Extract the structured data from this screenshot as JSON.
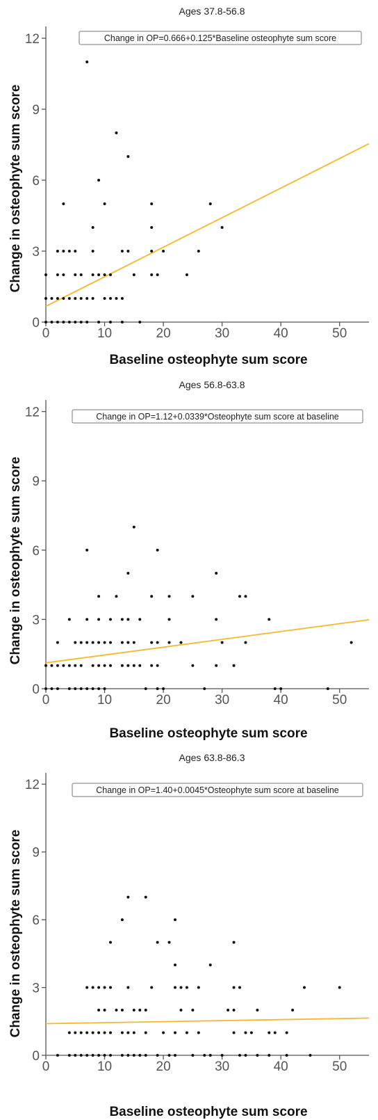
{
  "chart_data": [
    {
      "type": "scatter",
      "title": "Ages 37.8-56.8",
      "xlabel": "Baseline osteophyte sum score",
      "ylabel": "Change in osteophyte sum score",
      "xlim": [
        0,
        55
      ],
      "ylim": [
        0,
        12.5
      ],
      "xticks": [
        0,
        10,
        20,
        30,
        40,
        50
      ],
      "yticks": [
        0,
        3,
        6,
        9,
        12
      ],
      "annotation": "Change in OP=0.666+0.125*Baseline osteophyte sum score",
      "fit": {
        "intercept": 0.666,
        "slope": 0.125,
        "color": "#f5b82e"
      },
      "points": [
        [
          0,
          0
        ],
        [
          1,
          0
        ],
        [
          2,
          0
        ],
        [
          3,
          0
        ],
        [
          4,
          0
        ],
        [
          5,
          0
        ],
        [
          6,
          0
        ],
        [
          7,
          0
        ],
        [
          9,
          0
        ],
        [
          11,
          0
        ],
        [
          13,
          0
        ],
        [
          16,
          0
        ],
        [
          0,
          1
        ],
        [
          1,
          1
        ],
        [
          2,
          1
        ],
        [
          3,
          1
        ],
        [
          4,
          1
        ],
        [
          5,
          1
        ],
        [
          6,
          1
        ],
        [
          7,
          1
        ],
        [
          8,
          1
        ],
        [
          10,
          1
        ],
        [
          11,
          1
        ],
        [
          12,
          1
        ],
        [
          13,
          1
        ],
        [
          0,
          2
        ],
        [
          2,
          2
        ],
        [
          3,
          2
        ],
        [
          5,
          2
        ],
        [
          6,
          2
        ],
        [
          8,
          2
        ],
        [
          9,
          2
        ],
        [
          10,
          2
        ],
        [
          11,
          2
        ],
        [
          15,
          2
        ],
        [
          18,
          2
        ],
        [
          19,
          2
        ],
        [
          24,
          2
        ],
        [
          2,
          3
        ],
        [
          3,
          3
        ],
        [
          4,
          3
        ],
        [
          5,
          3
        ],
        [
          8,
          3
        ],
        [
          13,
          3
        ],
        [
          14,
          3
        ],
        [
          18,
          3
        ],
        [
          20,
          3
        ],
        [
          26,
          3
        ],
        [
          8,
          4
        ],
        [
          18,
          4
        ],
        [
          30,
          4
        ],
        [
          3,
          5
        ],
        [
          10,
          5
        ],
        [
          18,
          5
        ],
        [
          28,
          5
        ],
        [
          9,
          6
        ],
        [
          14,
          7
        ],
        [
          12,
          8
        ],
        [
          7,
          11
        ]
      ]
    },
    {
      "type": "scatter",
      "title": "Ages 56.8-63.8",
      "xlabel": "Baseline osteophyte sum score",
      "ylabel": "Change in osteophyte sum score",
      "xlim": [
        0,
        55
      ],
      "ylim": [
        0,
        12.5
      ],
      "xticks": [
        0,
        10,
        20,
        30,
        40,
        50
      ],
      "yticks": [
        0,
        3,
        6,
        9,
        12
      ],
      "annotation": "Change in OP=1.12+0.0339*Osteophyte sum score at baseline",
      "fit": {
        "intercept": 1.12,
        "slope": 0.0339,
        "color": "#f5b82e"
      },
      "points": [
        [
          0,
          0
        ],
        [
          1,
          0
        ],
        [
          2,
          0
        ],
        [
          4,
          0
        ],
        [
          5,
          0
        ],
        [
          6,
          0
        ],
        [
          7,
          0
        ],
        [
          8,
          0
        ],
        [
          9,
          0
        ],
        [
          10,
          0
        ],
        [
          17,
          0
        ],
        [
          19,
          0
        ],
        [
          20,
          0
        ],
        [
          27,
          0
        ],
        [
          39,
          0
        ],
        [
          40,
          0
        ],
        [
          48,
          0
        ],
        [
          0,
          1
        ],
        [
          1,
          1
        ],
        [
          2,
          1
        ],
        [
          3,
          1
        ],
        [
          4,
          1
        ],
        [
          5,
          1
        ],
        [
          6,
          1
        ],
        [
          8,
          1
        ],
        [
          9,
          1
        ],
        [
          10,
          1
        ],
        [
          11,
          1
        ],
        [
          13,
          1
        ],
        [
          14,
          1
        ],
        [
          15,
          1
        ],
        [
          16,
          1
        ],
        [
          18,
          1
        ],
        [
          19,
          1
        ],
        [
          25,
          1
        ],
        [
          29,
          1
        ],
        [
          32,
          1
        ],
        [
          2,
          2
        ],
        [
          5,
          2
        ],
        [
          6,
          2
        ],
        [
          7,
          2
        ],
        [
          8,
          2
        ],
        [
          9,
          2
        ],
        [
          10,
          2
        ],
        [
          11,
          2
        ],
        [
          13,
          2
        ],
        [
          14,
          2
        ],
        [
          15,
          2
        ],
        [
          18,
          2
        ],
        [
          19,
          2
        ],
        [
          21,
          2
        ],
        [
          23,
          2
        ],
        [
          30,
          2
        ],
        [
          34,
          2
        ],
        [
          52,
          2
        ],
        [
          4,
          3
        ],
        [
          7,
          3
        ],
        [
          9,
          3
        ],
        [
          11,
          3
        ],
        [
          13,
          3
        ],
        [
          14,
          3
        ],
        [
          16,
          3
        ],
        [
          21,
          3
        ],
        [
          29,
          3
        ],
        [
          38,
          3
        ],
        [
          9,
          4
        ],
        [
          12,
          4
        ],
        [
          18,
          4
        ],
        [
          21,
          4
        ],
        [
          25,
          4
        ],
        [
          33,
          4
        ],
        [
          34,
          4
        ],
        [
          14,
          5
        ],
        [
          29,
          5
        ],
        [
          7,
          6
        ],
        [
          19,
          6
        ],
        [
          15,
          7
        ]
      ]
    },
    {
      "type": "scatter",
      "title": "Ages 63.8-86.3",
      "xlabel": "Baseline osteophyte sum score",
      "ylabel": "Change in osteophyte sum score",
      "xlim": [
        0,
        55
      ],
      "ylim": [
        0,
        12.5
      ],
      "xticks": [
        0,
        10,
        20,
        30,
        40,
        50
      ],
      "yticks": [
        0,
        3,
        6,
        9,
        12
      ],
      "annotation": "Change in OP=1.40+0.0045*Osteophyte sum score at baseline",
      "fit": {
        "intercept": 1.4,
        "slope": 0.0045,
        "color": "#f5b82e"
      },
      "points": [
        [
          2,
          0
        ],
        [
          4,
          0
        ],
        [
          5,
          0
        ],
        [
          6,
          0
        ],
        [
          7,
          0
        ],
        [
          8,
          0
        ],
        [
          9,
          0
        ],
        [
          10,
          0
        ],
        [
          11,
          0
        ],
        [
          13,
          0
        ],
        [
          14,
          0
        ],
        [
          15,
          0
        ],
        [
          16,
          0
        ],
        [
          17,
          0
        ],
        [
          19,
          0
        ],
        [
          21,
          0
        ],
        [
          22,
          0
        ],
        [
          25,
          0
        ],
        [
          27,
          0
        ],
        [
          28,
          0
        ],
        [
          30,
          0
        ],
        [
          33,
          0
        ],
        [
          34,
          0
        ],
        [
          36,
          0
        ],
        [
          38,
          0
        ],
        [
          41,
          0
        ],
        [
          45,
          0
        ],
        [
          4,
          1
        ],
        [
          5,
          1
        ],
        [
          6,
          1
        ],
        [
          7,
          1
        ],
        [
          8,
          1
        ],
        [
          9,
          1
        ],
        [
          10,
          1
        ],
        [
          11,
          1
        ],
        [
          13,
          1
        ],
        [
          14,
          1
        ],
        [
          15,
          1
        ],
        [
          17,
          1
        ],
        [
          20,
          1
        ],
        [
          22,
          1
        ],
        [
          24,
          1
        ],
        [
          26,
          1
        ],
        [
          32,
          1
        ],
        [
          34,
          1
        ],
        [
          35,
          1
        ],
        [
          38,
          1
        ],
        [
          39,
          1
        ],
        [
          41,
          1
        ],
        [
          9,
          2
        ],
        [
          10,
          2
        ],
        [
          12,
          2
        ],
        [
          13,
          2
        ],
        [
          15,
          2
        ],
        [
          16,
          2
        ],
        [
          17,
          2
        ],
        [
          23,
          2
        ],
        [
          25,
          2
        ],
        [
          31,
          2
        ],
        [
          32,
          2
        ],
        [
          36,
          2
        ],
        [
          42,
          2
        ],
        [
          7,
          3
        ],
        [
          8,
          3
        ],
        [
          9,
          3
        ],
        [
          10,
          3
        ],
        [
          11,
          3
        ],
        [
          14,
          3
        ],
        [
          18,
          3
        ],
        [
          22,
          3
        ],
        [
          23,
          3
        ],
        [
          24,
          3
        ],
        [
          26,
          3
        ],
        [
          32,
          3
        ],
        [
          33,
          3
        ],
        [
          44,
          3
        ],
        [
          50,
          3
        ],
        [
          22,
          4
        ],
        [
          28,
          4
        ],
        [
          11,
          5
        ],
        [
          19,
          5
        ],
        [
          21,
          5
        ],
        [
          32,
          5
        ],
        [
          13,
          6
        ],
        [
          22,
          6
        ],
        [
          14,
          7
        ],
        [
          17,
          7
        ]
      ]
    }
  ]
}
